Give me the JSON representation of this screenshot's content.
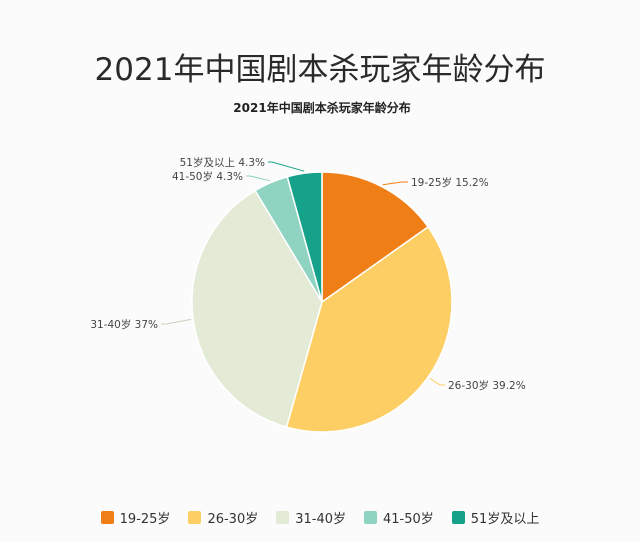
{
  "page": {
    "title": "2021年中国剧本杀玩家年龄分布"
  },
  "chart_data": {
    "type": "pie",
    "title": "2021年中国剧本杀玩家年龄分布",
    "unit": "%",
    "start_angle_deg": 0,
    "direction": "clockwise",
    "categories": [
      "19-25岁",
      "26-30岁",
      "31-40岁",
      "41-50岁",
      "51岁及以上"
    ],
    "values": [
      15.2,
      39.2,
      37,
      4.3,
      4.3
    ],
    "labels": [
      "19-25岁 15.2%",
      "26-30岁 39.2%",
      "31-40岁 37%",
      "41-50岁 4.3%",
      "51岁及以上 4.3%"
    ],
    "colors": [
      "#f07e17",
      "#fdce63",
      "#e3ebd6",
      "#8fd3c1",
      "#16a28a"
    ],
    "legend_position": "bottom"
  }
}
